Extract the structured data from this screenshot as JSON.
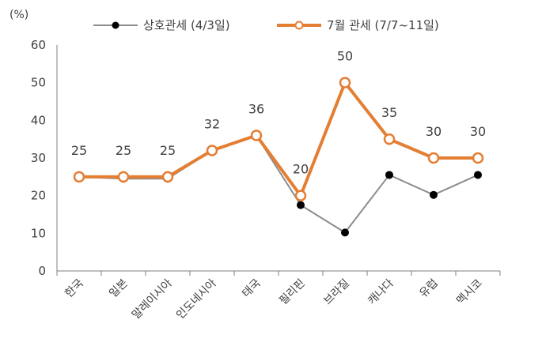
{
  "chart_data": {
    "type": "line",
    "unit_label": "(%)",
    "categories": [
      "한국",
      "일본",
      "말레이시아",
      "인도네시아",
      "태국",
      "필리핀",
      "브라질",
      "캐나다",
      "유럽",
      "멕시코"
    ],
    "ylim": [
      0,
      60
    ],
    "yticks": [
      0,
      10,
      20,
      30,
      40,
      50,
      60
    ],
    "legend_placement": "top",
    "grid": false,
    "series": [
      {
        "name": "상호관세 (4/3일)",
        "values": [
          25,
          24.5,
          24.5,
          32,
          36,
          17.5,
          10.2,
          25.5,
          20.2,
          25.5
        ],
        "color": "#8c8c8c",
        "marker_color": "#000000",
        "marker": "filled-circle"
      },
      {
        "name": "7월 관세 (7/7~11일)",
        "values": [
          25,
          25,
          25,
          32,
          36,
          20,
          50,
          35,
          30,
          30
        ],
        "color": "#e47e33",
        "marker": "hollow-circle",
        "data_labels": [
          "25",
          "25",
          "25",
          "32",
          "36",
          "20",
          "50",
          "35",
          "30",
          "30"
        ]
      }
    ]
  }
}
